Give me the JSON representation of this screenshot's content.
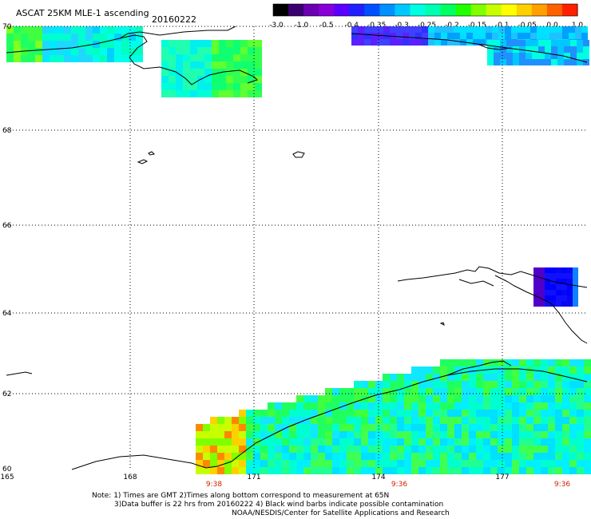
{
  "header": {
    "product": "ASCAT 25KM MLE-1 ascending",
    "date": "20160222"
  },
  "colorbar": {
    "tick_labels": [
      "-3.0",
      "-1.0",
      "-0.5",
      "-0.4",
      "-0.35",
      "-0.3",
      "-0.25",
      "-0.2",
      "-0.15",
      "-0.1",
      "-0.05",
      "0.0",
      "1.0"
    ],
    "colors": [
      "#000000",
      "#3a0070",
      "#6a00b0",
      "#8800d8",
      "#5a00ff",
      "#2020ff",
      "#0050ff",
      "#0090ff",
      "#00c8ff",
      "#00ffe0",
      "#00ffb0",
      "#00ff60",
      "#20ff00",
      "#80ff00",
      "#c8ff00",
      "#ffff00",
      "#ffd000",
      "#ffa000",
      "#ff6000",
      "#ff2000"
    ]
  },
  "axes": {
    "lat_labels": [
      "70",
      "68",
      "66",
      "64",
      "62",
      "60"
    ],
    "lon_labels": [
      "165",
      "168",
      "171",
      "174",
      "177"
    ]
  },
  "times": [
    "9:38",
    "9:36",
    "9:36"
  ],
  "notes": {
    "line1": "Note: 1) Times are GMT 2)Times along bottom correspond to measurement at 65N",
    "line2": "3)Data buffer is 22 hrs from 20160222 4) Black wind barbs indicate possible contamination",
    "line3": "NOAA/NESDIS/Center for Satellite Applications and Research"
  },
  "style": {
    "time_color": "#cc2200",
    "grid_color": "#000000"
  }
}
